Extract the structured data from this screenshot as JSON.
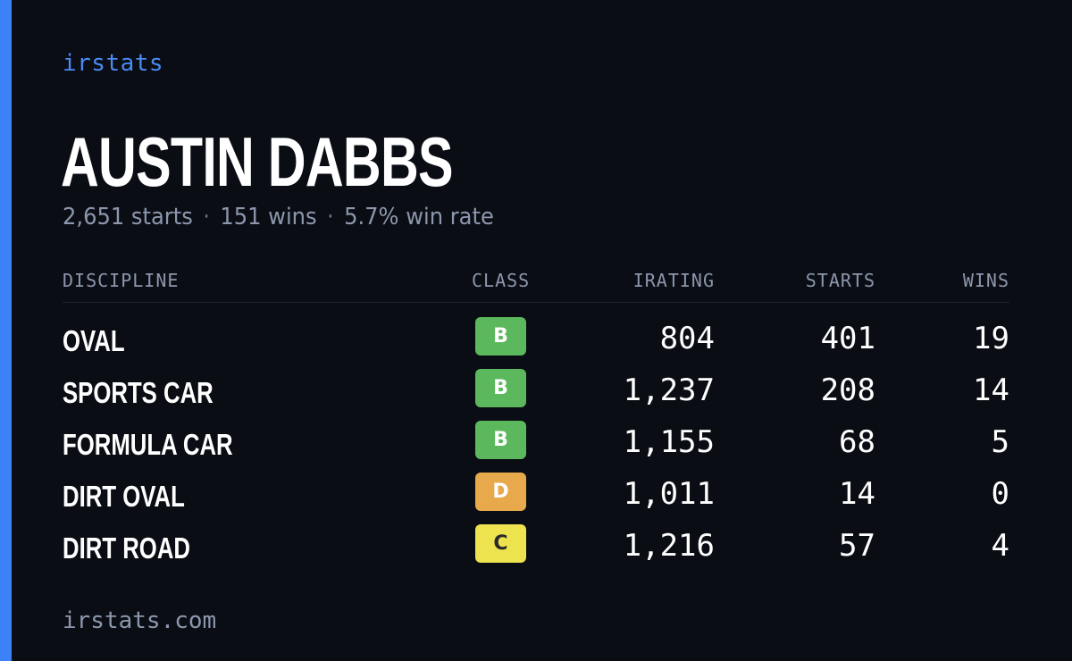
{
  "brand": "irstats",
  "driver": {
    "name": "AUSTIN DABBS",
    "starts_text": "2,651 starts",
    "wins_text": "151 wins",
    "win_rate_text": "5.7% win rate",
    "separator": "·"
  },
  "table": {
    "headers": {
      "discipline": "DISCIPLINE",
      "class": "CLASS",
      "irating": "IRATING",
      "starts": "STARTS",
      "wins": "WINS"
    },
    "rows": [
      {
        "discipline": "OVAL",
        "class": "B",
        "class_color": "#5cb85c",
        "class_text_color": "#ffffff",
        "irating": "804",
        "starts": "401",
        "wins": "19"
      },
      {
        "discipline": "SPORTS CAR",
        "class": "B",
        "class_color": "#5cb85c",
        "class_text_color": "#ffffff",
        "irating": "1,237",
        "starts": "208",
        "wins": "14"
      },
      {
        "discipline": "FORMULA CAR",
        "class": "B",
        "class_color": "#5cb85c",
        "class_text_color": "#ffffff",
        "irating": "1,155",
        "starts": "68",
        "wins": "5"
      },
      {
        "discipline": "DIRT OVAL",
        "class": "D",
        "class_color": "#e8a94d",
        "class_text_color": "#ffffff",
        "irating": "1,011",
        "starts": "14",
        "wins": "0"
      },
      {
        "discipline": "DIRT ROAD",
        "class": "C",
        "class_color": "#ece34f",
        "class_text_color": "#2a2a2a",
        "irating": "1,216",
        "starts": "57",
        "wins": "4"
      }
    ]
  },
  "footer": "irstats.com",
  "colors": {
    "background": "#0a0d14",
    "accent": "#3b82f6",
    "muted_text": "#8c97ad"
  }
}
